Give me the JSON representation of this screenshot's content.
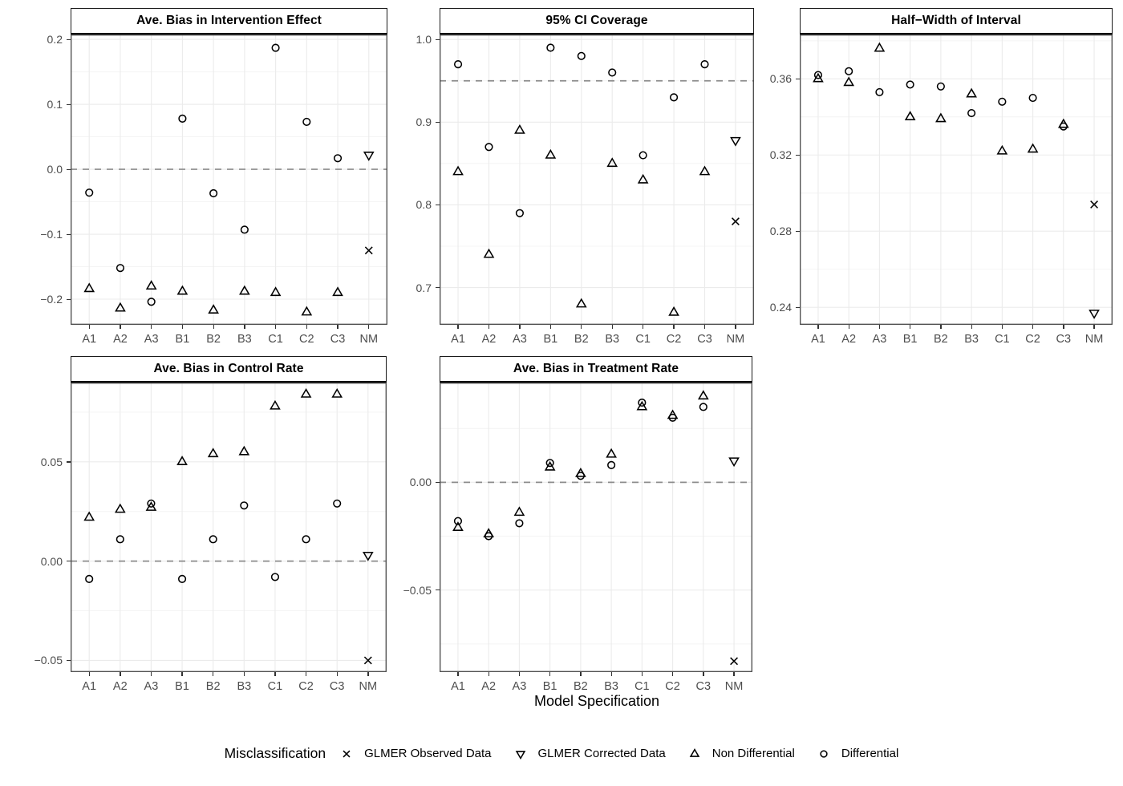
{
  "chart_data": {
    "type": "scatter",
    "categories": [
      "A1",
      "A2",
      "A3",
      "B1",
      "B2",
      "B3",
      "C1",
      "C2",
      "C3",
      "NM"
    ],
    "xlabel": "Model Specification",
    "grid": "major-and-minor-y, major-x",
    "legend_position": "bottom",
    "colors": {
      "marker_stroke": "#000000",
      "grid_major": "#ebebeb",
      "grid_minor": "#f4f4f4",
      "ref_line": "#8c8c8c",
      "panel_border": "#474747",
      "tick_label": "#4d4d4d"
    },
    "legend": {
      "title": "Misclassification",
      "items": [
        {
          "marker": "x",
          "label": "GLMER Observed Data"
        },
        {
          "marker": "triangle-down",
          "label": "GLMER Corrected Data"
        },
        {
          "marker": "triangle-up",
          "label": "Non Differential"
        },
        {
          "marker": "circle",
          "label": "Differential"
        }
      ]
    },
    "panels": [
      {
        "title": "Ave. Bias in Intervention Effect",
        "ylim": [
          -0.2395,
          0.2075
        ],
        "yticks": [
          0.2,
          0.1,
          0.0,
          -0.1,
          -0.2
        ],
        "ytick_labels": [
          "0.2",
          "0.1",
          "0.0",
          "−0.1",
          "−0.2"
        ],
        "ref_line": 0.0,
        "series": [
          {
            "name": "Non Differential",
            "marker": "triangle-up",
            "values": [
              -0.184,
              -0.214,
              -0.18,
              -0.188,
              -0.217,
              -0.188,
              -0.19,
              -0.22,
              -0.19,
              null
            ]
          },
          {
            "name": "Differential",
            "marker": "circle",
            "values": [
              -0.036,
              -0.152,
              -0.204,
              0.078,
              -0.037,
              -0.093,
              0.187,
              0.073,
              0.017,
              null
            ]
          },
          {
            "name": "GLMER Observed Data",
            "marker": "x",
            "values": [
              null,
              null,
              null,
              null,
              null,
              null,
              null,
              null,
              null,
              -0.125
            ]
          },
          {
            "name": "GLMER Corrected Data",
            "marker": "triangle-down",
            "values": [
              null,
              null,
              null,
              null,
              null,
              null,
              null,
              null,
              null,
              0.022
            ]
          }
        ]
      },
      {
        "title": "95% CI Coverage",
        "ylim": [
          0.655,
          1.006
        ],
        "yticks": [
          1.0,
          0.9,
          0.8,
          0.7
        ],
        "ytick_labels": [
          "1.0",
          "0.9",
          "0.8",
          "0.7"
        ],
        "ref_line": 0.95,
        "series": [
          {
            "name": "Non Differential",
            "marker": "triangle-up",
            "values": [
              0.84,
              0.74,
              0.89,
              0.86,
              0.68,
              0.85,
              0.83,
              0.67,
              0.84,
              null
            ]
          },
          {
            "name": "Differential",
            "marker": "circle",
            "values": [
              0.97,
              0.87,
              0.79,
              0.99,
              0.98,
              0.96,
              0.86,
              0.93,
              0.97,
              null
            ]
          },
          {
            "name": "GLMER Observed Data",
            "marker": "x",
            "values": [
              null,
              null,
              null,
              null,
              null,
              null,
              null,
              null,
              null,
              0.78
            ]
          },
          {
            "name": "GLMER Corrected Data",
            "marker": "triangle-down",
            "values": [
              null,
              null,
              null,
              null,
              null,
              null,
              null,
              null,
              null,
              0.878
            ]
          }
        ]
      },
      {
        "title": "Half−Width of Interval",
        "ylim": [
          0.2308,
          0.3833
        ],
        "yticks": [
          0.36,
          0.32,
          0.28,
          0.24
        ],
        "ytick_labels": [
          "0.36",
          "0.32",
          "0.28",
          "0.24"
        ],
        "ref_line": null,
        "series": [
          {
            "name": "Non Differential",
            "marker": "triangle-up",
            "values": [
              0.36,
              0.358,
              0.376,
              0.34,
              0.339,
              0.352,
              0.322,
              0.323,
              0.336,
              null
            ]
          },
          {
            "name": "Differential",
            "marker": "circle",
            "values": [
              0.362,
              0.364,
              0.353,
              0.357,
              0.356,
              0.342,
              0.348,
              0.35,
              0.335,
              null
            ]
          },
          {
            "name": "GLMER Observed Data",
            "marker": "x",
            "values": [
              null,
              null,
              null,
              null,
              null,
              null,
              null,
              null,
              null,
              0.294
            ]
          },
          {
            "name": "GLMER Corrected Data",
            "marker": "triangle-down",
            "values": [
              null,
              null,
              null,
              null,
              null,
              null,
              null,
              null,
              null,
              0.237
            ]
          }
        ]
      },
      {
        "title": "Ave. Bias in Control Rate",
        "ylim": [
          -0.0559,
          0.0899
        ],
        "yticks": [
          0.05,
          0.0,
          -0.05
        ],
        "ytick_labels": [
          "0.05",
          "0.00",
          "−0.05"
        ],
        "ref_line": 0.0,
        "series": [
          {
            "name": "Non Differential",
            "marker": "triangle-up",
            "values": [
              0.022,
              0.026,
              0.027,
              0.05,
              0.054,
              0.055,
              0.078,
              0.084,
              0.084,
              null
            ]
          },
          {
            "name": "Differential",
            "marker": "circle",
            "values": [
              -0.009,
              0.011,
              0.029,
              -0.009,
              0.011,
              0.028,
              -0.008,
              0.011,
              0.029,
              null
            ]
          },
          {
            "name": "GLMER Observed Data",
            "marker": "x",
            "values": [
              null,
              null,
              null,
              null,
              null,
              null,
              null,
              null,
              null,
              -0.05
            ]
          },
          {
            "name": "GLMER Corrected Data",
            "marker": "triangle-down",
            "values": [
              null,
              null,
              null,
              null,
              null,
              null,
              null,
              null,
              null,
              0.003
            ]
          }
        ]
      },
      {
        "title": "Ave. Bias in Treatment Rate",
        "ylim": [
          -0.0881,
          0.0463
        ],
        "yticks": [
          0.0,
          -0.05
        ],
        "ytick_labels": [
          "0.00",
          "−0.05"
        ],
        "ref_line": 0.0,
        "series": [
          {
            "name": "Non Differential",
            "marker": "triangle-up",
            "values": [
              -0.021,
              -0.024,
              -0.014,
              0.007,
              0.004,
              0.013,
              0.035,
              0.031,
              0.04,
              null
            ]
          },
          {
            "name": "Differential",
            "marker": "circle",
            "values": [
              -0.018,
              -0.025,
              -0.019,
              0.009,
              0.003,
              0.008,
              0.037,
              0.03,
              0.035,
              null
            ]
          },
          {
            "name": "GLMER Observed Data",
            "marker": "x",
            "values": [
              null,
              null,
              null,
              null,
              null,
              null,
              null,
              null,
              null,
              -0.083
            ]
          },
          {
            "name": "GLMER Corrected Data",
            "marker": "triangle-down",
            "values": [
              null,
              null,
              null,
              null,
              null,
              null,
              null,
              null,
              null,
              0.01
            ]
          }
        ]
      }
    ]
  }
}
